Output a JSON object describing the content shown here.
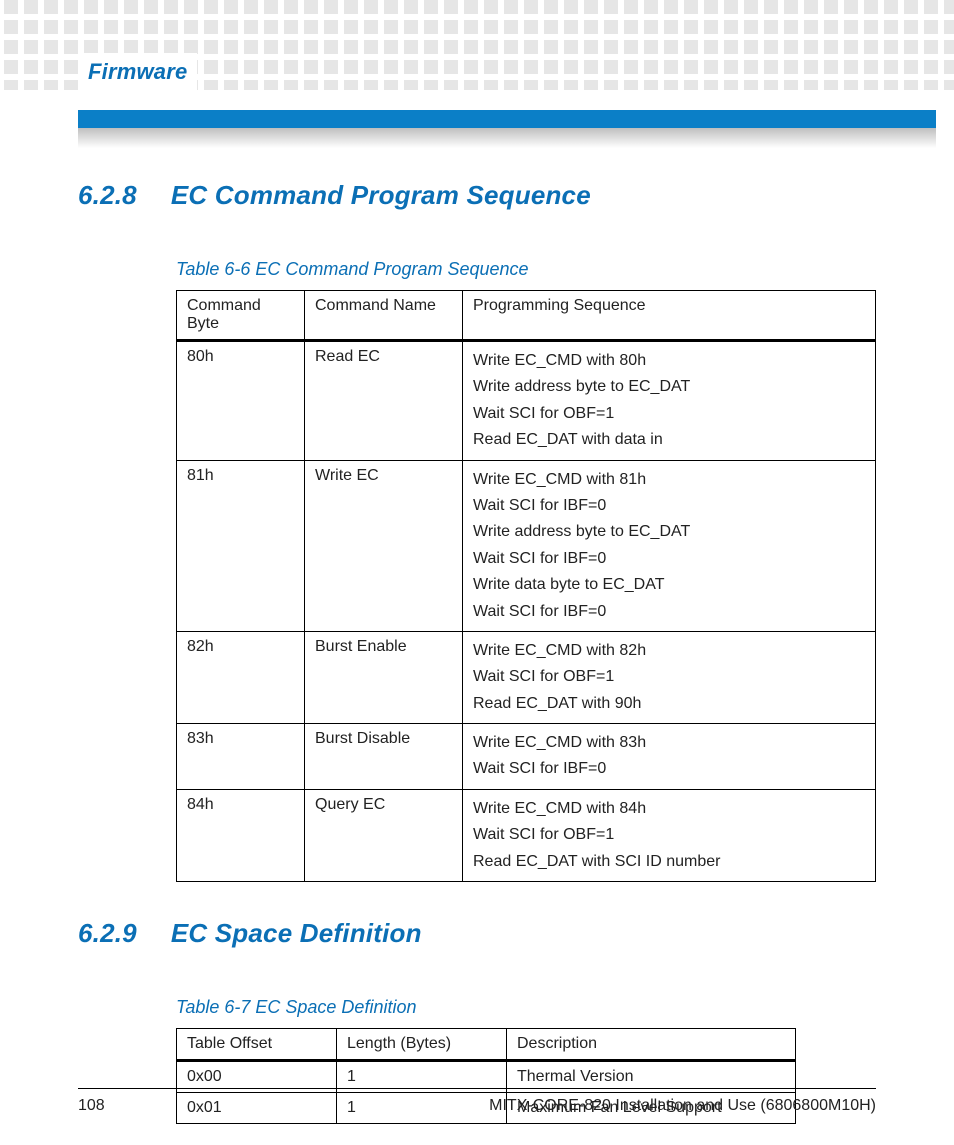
{
  "header": {
    "section_label": "Firmware"
  },
  "colors": {
    "brand_blue": "#0b6fb5",
    "bar_blue": "#0b7fc7",
    "square_grey": "#e6e6e6",
    "text": "#222222",
    "background": "#ffffff"
  },
  "section_628": {
    "number": "6.2.8",
    "title": "EC Command Program Sequence",
    "table_caption": "Table 6-6 EC Command Program Sequence",
    "columns": [
      "Command Byte",
      "Command Name",
      "Programming Sequence"
    ],
    "rows": [
      {
        "byte": "80h",
        "name": "Read EC",
        "seq": [
          "Write EC_CMD with 80h",
          "Write address byte to EC_DAT",
          "Wait SCI for OBF=1",
          "Read EC_DAT with data in"
        ]
      },
      {
        "byte": "81h",
        "name": "Write EC",
        "seq": [
          "Write EC_CMD with 81h",
          "Wait SCI for IBF=0",
          "Write address byte to EC_DAT",
          "Wait SCI for IBF=0",
          "Write data byte to EC_DAT",
          "Wait SCI for IBF=0"
        ]
      },
      {
        "byte": "82h",
        "name": "Burst Enable",
        "seq": [
          "Write EC_CMD with 82h",
          "Wait SCI for OBF=1",
          "Read EC_DAT with 90h"
        ]
      },
      {
        "byte": "83h",
        "name": "Burst Disable",
        "seq": [
          "Write EC_CMD with 83h",
          "Wait SCI for IBF=0"
        ]
      },
      {
        "byte": "84h",
        "name": "Query EC",
        "seq": [
          "Write EC_CMD with 84h",
          "Wait SCI for OBF=1",
          "Read EC_DAT with SCI ID number"
        ]
      }
    ]
  },
  "section_629": {
    "number": "6.2.9",
    "title": "EC Space Definition",
    "table_caption": "Table 6-7 EC Space Definition",
    "columns": [
      "Table Offset",
      "Length (Bytes)",
      "Description"
    ],
    "rows": [
      {
        "offset": "0x00",
        "len": "1",
        "desc": "Thermal Version"
      },
      {
        "offset": "0x01",
        "len": "1",
        "desc": "Maximum Fan Level Support"
      }
    ]
  },
  "footer": {
    "page_number": "108",
    "doc_title": "MITX-CORE-820 Installation and Use (6806800M10H)"
  }
}
